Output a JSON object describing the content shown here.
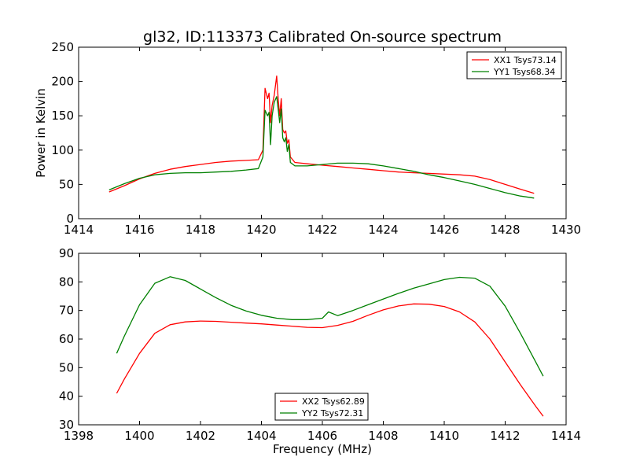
{
  "title": "gl32, ID:113373 Calibrated On-source spectrum",
  "colors": {
    "xx": "#ff0000",
    "yy": "#008000",
    "axes": "#000000",
    "background": "#ffffff"
  },
  "chart_data": [
    {
      "type": "line",
      "title": "gl32, ID:113373 Calibrated On-source spectrum",
      "xlabel": "",
      "ylabel": "Power in Kelvin",
      "xlim": [
        1414,
        1430
      ],
      "ylim": [
        0,
        250
      ],
      "xticks": [
        1414,
        1416,
        1418,
        1420,
        1422,
        1424,
        1426,
        1428,
        1430
      ],
      "yticks": [
        0,
        50,
        100,
        150,
        200,
        250
      ],
      "grid": false,
      "legend_position": "top-right",
      "series": [
        {
          "name": "XX1 Tsys73.14",
          "color": "#ff0000",
          "x": [
            1415.0,
            1415.5,
            1416.0,
            1416.5,
            1417.0,
            1417.5,
            1418.0,
            1418.5,
            1419.0,
            1419.5,
            1419.9,
            1420.05,
            1420.12,
            1420.2,
            1420.25,
            1420.3,
            1420.35,
            1420.42,
            1420.5,
            1420.55,
            1420.6,
            1420.65,
            1420.7,
            1420.75,
            1420.8,
            1420.85,
            1420.9,
            1420.95,
            1421.1,
            1421.5,
            1422.0,
            1422.5,
            1423.0,
            1423.5,
            1424.0,
            1424.5,
            1425.0,
            1425.5,
            1426.0,
            1426.5,
            1427.0,
            1427.5,
            1428.0,
            1428.5,
            1428.95
          ],
          "y": [
            39,
            48,
            58,
            66,
            72,
            76,
            79,
            82,
            84,
            85,
            86,
            100,
            190,
            175,
            183,
            140,
            165,
            180,
            208,
            175,
            150,
            175,
            130,
            125,
            128,
            110,
            115,
            90,
            82,
            80,
            78,
            76,
            74,
            72,
            70,
            68,
            67,
            66,
            65,
            64,
            62,
            57,
            50,
            43,
            37
          ]
        },
        {
          "name": "YY1 Tsys68.34",
          "color": "#008000",
          "x": [
            1415.0,
            1415.5,
            1416.0,
            1416.5,
            1417.0,
            1417.5,
            1418.0,
            1418.5,
            1419.0,
            1419.5,
            1419.9,
            1420.05,
            1420.12,
            1420.2,
            1420.25,
            1420.3,
            1420.35,
            1420.42,
            1420.5,
            1420.55,
            1420.6,
            1420.65,
            1420.7,
            1420.75,
            1420.8,
            1420.85,
            1420.9,
            1420.95,
            1421.1,
            1421.5,
            1422.0,
            1422.5,
            1423.0,
            1423.5,
            1424.0,
            1424.5,
            1425.0,
            1425.5,
            1426.0,
            1426.5,
            1427.0,
            1427.5,
            1428.0,
            1428.5,
            1428.95
          ],
          "y": [
            42,
            51,
            59,
            64,
            66,
            67,
            67,
            68,
            69,
            71,
            73,
            90,
            158,
            150,
            155,
            108,
            150,
            170,
            178,
            160,
            140,
            160,
            118,
            112,
            118,
            98,
            108,
            82,
            77,
            77,
            79,
            81,
            81,
            80,
            77,
            73,
            69,
            64,
            60,
            55,
            50,
            44,
            38,
            33,
            30
          ]
        }
      ]
    },
    {
      "type": "line",
      "title": "",
      "xlabel": "Frequency (MHz)",
      "ylabel": "",
      "xlim": [
        1398,
        1414
      ],
      "ylim": [
        30,
        90
      ],
      "xticks": [
        1398,
        1400,
        1402,
        1404,
        1406,
        1408,
        1410,
        1412,
        1414
      ],
      "yticks": [
        30,
        40,
        50,
        60,
        70,
        80,
        90
      ],
      "grid": false,
      "legend_position": "bottom-center",
      "series": [
        {
          "name": "XX2 Tsys62.89",
          "color": "#ff0000",
          "x": [
            1399.25,
            1399.5,
            1400.0,
            1400.5,
            1401.0,
            1401.5,
            1402.0,
            1402.5,
            1403.0,
            1403.5,
            1404.0,
            1404.5,
            1405.0,
            1405.5,
            1406.0,
            1406.5,
            1407.0,
            1407.5,
            1408.0,
            1408.5,
            1409.0,
            1409.5,
            1410.0,
            1410.5,
            1411.0,
            1411.5,
            1412.0,
            1412.5,
            1413.0,
            1413.25
          ],
          "y": [
            41,
            46,
            55,
            62,
            65,
            66,
            66.3,
            66.2,
            65.9,
            65.6,
            65.3,
            64.9,
            64.5,
            64.1,
            64.0,
            64.8,
            66.2,
            68.3,
            70.2,
            71.6,
            72.3,
            72.2,
            71.4,
            69.5,
            66.0,
            60.0,
            52.0,
            44.0,
            36.5,
            33.0
          ]
        },
        {
          "name": "YY2 Tsys72.31",
          "color": "#008000",
          "x": [
            1399.25,
            1399.5,
            1400.0,
            1400.5,
            1401.0,
            1401.5,
            1402.0,
            1402.5,
            1403.0,
            1403.5,
            1404.0,
            1404.5,
            1405.0,
            1405.5,
            1406.0,
            1406.2,
            1406.5,
            1407.0,
            1407.5,
            1408.0,
            1408.5,
            1409.0,
            1409.5,
            1410.0,
            1410.5,
            1411.0,
            1411.5,
            1412.0,
            1412.5,
            1413.0,
            1413.25
          ],
          "y": [
            55,
            61,
            72,
            79.5,
            81.8,
            80.5,
            77.5,
            74.5,
            71.8,
            69.8,
            68.3,
            67.3,
            66.8,
            66.8,
            67.3,
            69.5,
            68.2,
            70.0,
            72.0,
            74.0,
            76.0,
            77.8,
            79.3,
            80.8,
            81.6,
            81.3,
            78.5,
            71.5,
            62.0,
            52.0,
            47.0
          ]
        }
      ]
    }
  ]
}
